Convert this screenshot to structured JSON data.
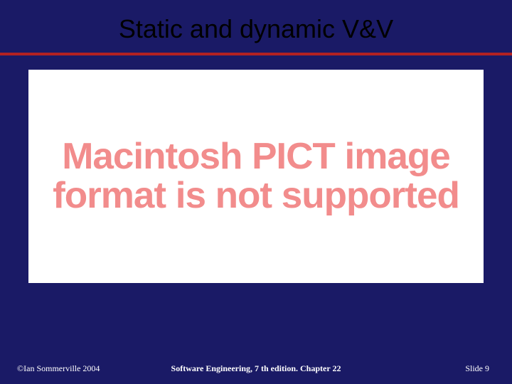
{
  "slide": {
    "title": "Static and dynamic V&V",
    "background_color": "#1a1a66",
    "divider_color": "#b22222",
    "title_fontfamily": "Arial",
    "title_fontsize": 36,
    "title_color": "#000000"
  },
  "content": {
    "placeholder_lines": "Macintosh PICT image format is not supported",
    "box_background": "#ffffff",
    "text_color": "#f28c8c",
    "text_fontsize": 52,
    "text_fontweight": 700
  },
  "footer": {
    "left": "©Ian Sommerville 2004",
    "center": "Software Engineering, 7 th edition. Chapter 22",
    "right_prefix": "Slide ",
    "slide_number": "9",
    "text_color": "#ffffff",
    "fontsize": 12
  }
}
